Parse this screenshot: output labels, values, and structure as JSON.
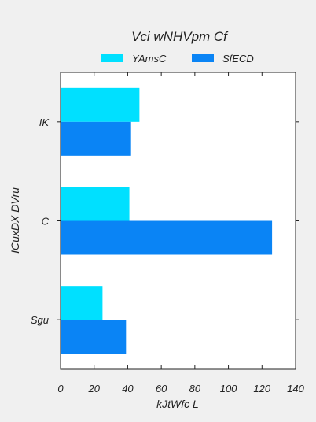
{
  "chart_data": {
    "type": "bar",
    "orientation": "horizontal",
    "title": "Vci wNHVpm Cf",
    "xlabel": "kJtWfc L",
    "ylabel": "ICuxDX DVru",
    "categories": [
      "IK",
      "C",
      "Sgu"
    ],
    "series": [
      {
        "name": "YAmsC",
        "values": [
          47,
          41,
          25
        ],
        "color": "#00e0ff"
      },
      {
        "name": "SfECD",
        "values": [
          42,
          126,
          39
        ],
        "color": "#0a84f5"
      }
    ],
    "xlim": [
      0,
      140
    ],
    "xticks": [
      0,
      20,
      40,
      60,
      80,
      100,
      120,
      140
    ],
    "grid": false,
    "legend": "top-center"
  }
}
